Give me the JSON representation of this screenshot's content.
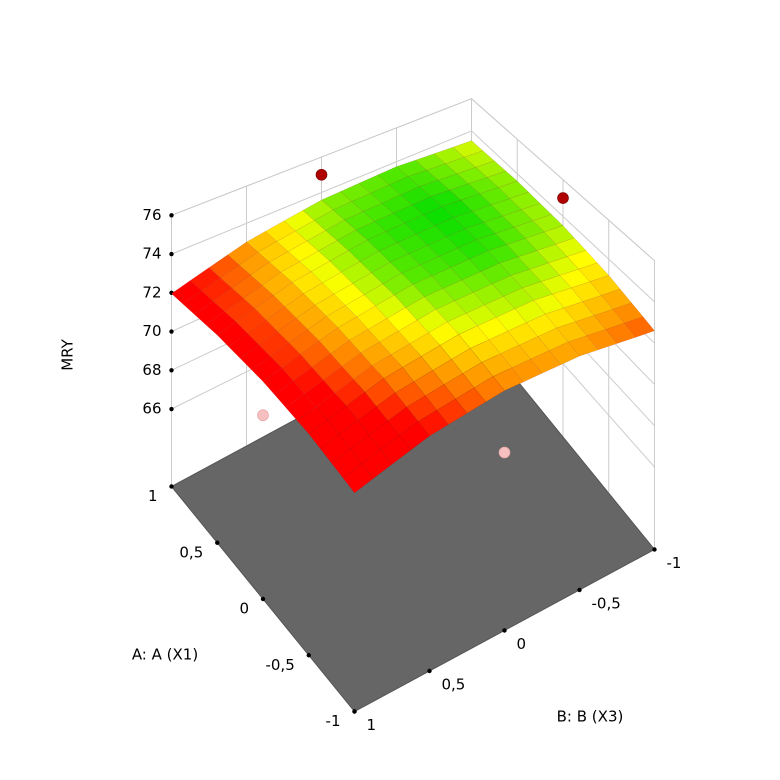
{
  "chart_data": {
    "type": "surface",
    "zlabel": "MRY",
    "xlabel": "A: A (X1)",
    "ylabel": "B: B (X3)",
    "zlim": [
      62,
      76
    ],
    "zticks": [
      66,
      68,
      70,
      72,
      74,
      76
    ],
    "xlim": [
      -1,
      1
    ],
    "xticks": [
      -1,
      {
        "value": -0.5,
        "label": "-0,5"
      },
      0,
      {
        "value": 0.5,
        "label": "0,5"
      },
      1
    ],
    "ylim": [
      -1,
      1
    ],
    "yticks": [
      -1,
      {
        "value": -0.5,
        "label": "-0,5"
      },
      0,
      {
        "value": 0.5,
        "label": "0,5"
      },
      1
    ],
    "surface": {
      "x": [
        1,
        0.5,
        0,
        -0.5,
        -1
      ],
      "y": [
        1,
        0.5,
        0,
        -0.5,
        -1
      ],
      "z": [
        [
          71.96,
          72.99,
          73.58,
          73.71,
          73.4
        ],
        [
          72.13,
          73.17,
          73.75,
          73.89,
          73.57
        ],
        [
          72.06,
          73.09,
          73.68,
          73.81,
          73.5
        ],
        [
          71.73,
          72.77,
          73.35,
          73.49,
          73.17
        ],
        [
          71.16,
          72.19,
          72.78,
          72.91,
          72.6
        ]
      ],
      "colormap": [
        "#ff0000",
        "#ff0000",
        "#ff0000",
        "#ff8000",
        "#ffff00",
        "#00dd00"
      ]
    },
    "points": {
      "x": [
        1,
        0,
        0,
        -1
      ],
      "y": [
        0,
        -1,
        1,
        0
      ],
      "z": [
        75.0,
        75.0,
        70.5,
        70.0
      ],
      "above_color": "#b00000",
      "below_color": "#f6c0c0"
    },
    "floor_color": "#666666",
    "grid": true
  }
}
